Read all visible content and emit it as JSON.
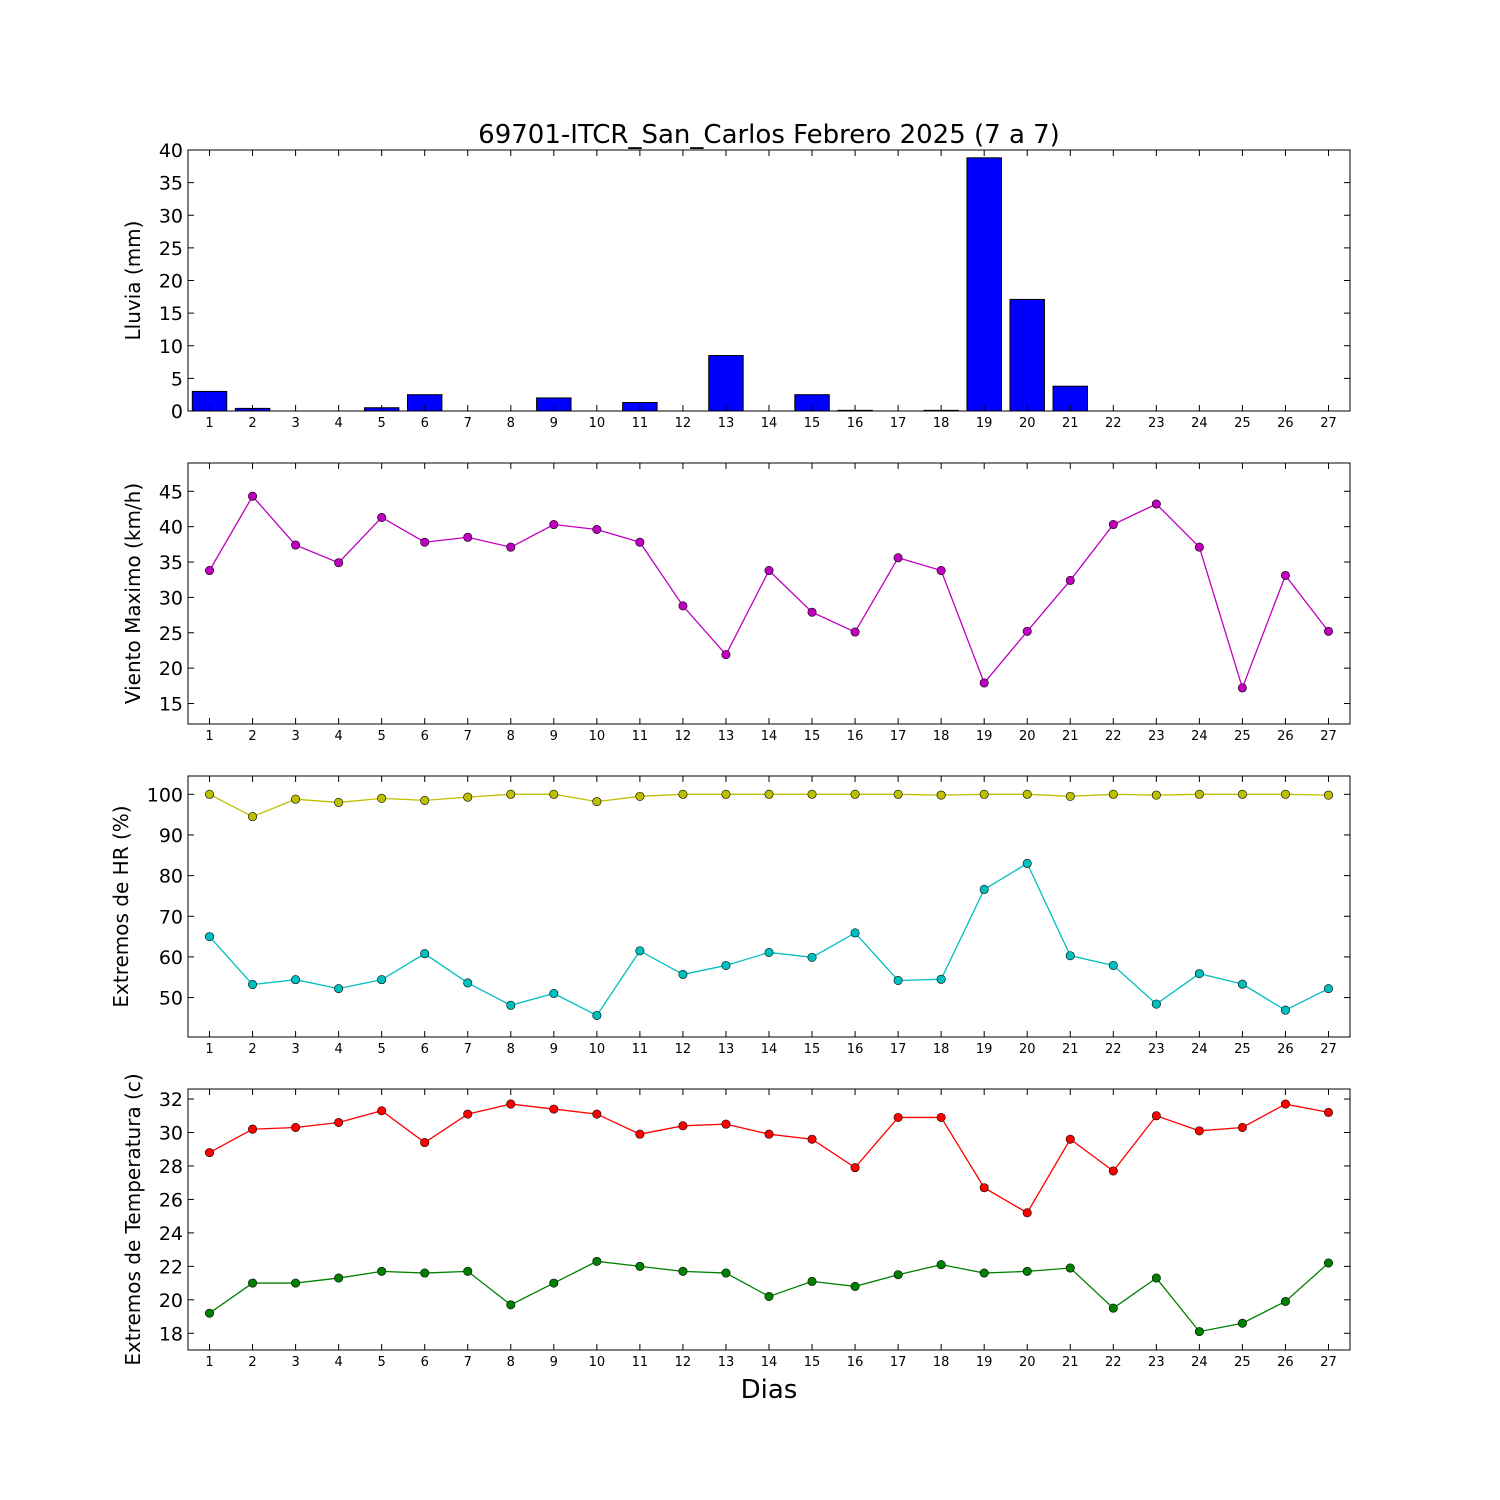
{
  "figure": {
    "title": "69701-ITCR_San_Carlos Febrero 2025  (7 a 7)",
    "xlabel": "Dias"
  },
  "chart_data": [
    {
      "type": "bar",
      "ylabel": "Lluvia (mm)",
      "x": [
        1,
        2,
        3,
        4,
        5,
        6,
        7,
        8,
        9,
        10,
        11,
        12,
        13,
        14,
        15,
        16,
        17,
        18,
        19,
        20,
        21,
        22,
        23,
        24,
        25,
        26,
        27
      ],
      "xlim": [
        0.5,
        27.5
      ],
      "ylim": [
        0,
        40
      ],
      "yticks": [
        0,
        5,
        10,
        15,
        20,
        25,
        30,
        35,
        40
      ],
      "series": [
        {
          "color": "#0000ff",
          "values": [
            3.0,
            0.4,
            0,
            0,
            0.5,
            2.5,
            0,
            0,
            2.0,
            0,
            1.3,
            0,
            8.5,
            0,
            2.5,
            0.1,
            0,
            0.1,
            38.8,
            17.1,
            3.8,
            0,
            0,
            0,
            0,
            0,
            0
          ]
        }
      ]
    },
    {
      "type": "line",
      "ylabel": "Viento Maximo (km/h)",
      "x": [
        1,
        2,
        3,
        4,
        5,
        6,
        7,
        8,
        9,
        10,
        11,
        12,
        13,
        14,
        15,
        16,
        17,
        18,
        19,
        20,
        21,
        22,
        23,
        24,
        25,
        26,
        27
      ],
      "xlim": [
        0.5,
        27.5
      ],
      "ylim": [
        12.1,
        49.0
      ],
      "yticks": [
        15,
        20,
        25,
        30,
        35,
        40,
        45
      ],
      "series": [
        {
          "color": "#bf00bf",
          "values": [
            33.8,
            44.3,
            37.4,
            34.9,
            41.3,
            37.8,
            38.5,
            37.1,
            40.3,
            39.6,
            37.8,
            28.8,
            21.9,
            33.8,
            27.9,
            25.1,
            35.6,
            33.8,
            17.9,
            25.2,
            32.4,
            40.3,
            43.2,
            37.1,
            17.2,
            33.1,
            25.2
          ]
        }
      ]
    },
    {
      "type": "line",
      "ylabel": "Extremos de HR (%)",
      "x": [
        1,
        2,
        3,
        4,
        5,
        6,
        7,
        8,
        9,
        10,
        11,
        12,
        13,
        14,
        15,
        16,
        17,
        18,
        19,
        20,
        21,
        22,
        23,
        24,
        25,
        26,
        27
      ],
      "xlim": [
        0.5,
        27.5
      ],
      "ylim": [
        40.3,
        104.5
      ],
      "yticks": [
        50,
        60,
        70,
        80,
        90,
        100
      ],
      "series": [
        {
          "color": "#bfbf00",
          "values": [
            100,
            94.5,
            98.8,
            98.0,
            99.0,
            98.5,
            99.3,
            100,
            100,
            98.2,
            99.5,
            100,
            100,
            100,
            100,
            100,
            100,
            99.8,
            100,
            100,
            99.5,
            100,
            99.8,
            100,
            100,
            100,
            99.8
          ]
        },
        {
          "color": "#00bfbf",
          "values": [
            65.0,
            53.2,
            54.4,
            52.2,
            54.4,
            60.8,
            53.6,
            48.1,
            51.0,
            45.6,
            61.5,
            55.7,
            57.9,
            61.1,
            59.9,
            65.9,
            54.2,
            54.5,
            76.6,
            83.0,
            60.3,
            57.9,
            48.4,
            55.9,
            53.3,
            46.9,
            52.2
          ]
        }
      ]
    },
    {
      "type": "line",
      "ylabel": "Extremos de Temperatura (c)",
      "x": [
        1,
        2,
        3,
        4,
        5,
        6,
        7,
        8,
        9,
        10,
        11,
        12,
        13,
        14,
        15,
        16,
        17,
        18,
        19,
        20,
        21,
        22,
        23,
        24,
        25,
        26,
        27
      ],
      "xlim": [
        0.5,
        27.5
      ],
      "ylim": [
        17.0,
        32.6
      ],
      "yticks": [
        18,
        20,
        22,
        24,
        26,
        28,
        30,
        32
      ],
      "series": [
        {
          "color": "#ff0000",
          "values": [
            28.8,
            30.2,
            30.3,
            30.6,
            31.3,
            29.4,
            31.1,
            31.7,
            31.4,
            31.1,
            29.9,
            30.4,
            30.5,
            29.9,
            29.6,
            27.9,
            30.9,
            30.9,
            26.7,
            25.2,
            29.6,
            27.7,
            31.0,
            30.1,
            30.3,
            31.7,
            31.2
          ]
        },
        {
          "color": "#008000",
          "values": [
            19.2,
            21.0,
            21.0,
            21.3,
            21.7,
            21.6,
            21.7,
            19.7,
            21.0,
            22.3,
            22.0,
            21.7,
            21.6,
            20.2,
            21.1,
            20.8,
            21.5,
            22.1,
            21.6,
            21.7,
            21.9,
            19.5,
            21.3,
            18.1,
            18.6,
            19.9,
            22.2
          ]
        }
      ]
    }
  ]
}
